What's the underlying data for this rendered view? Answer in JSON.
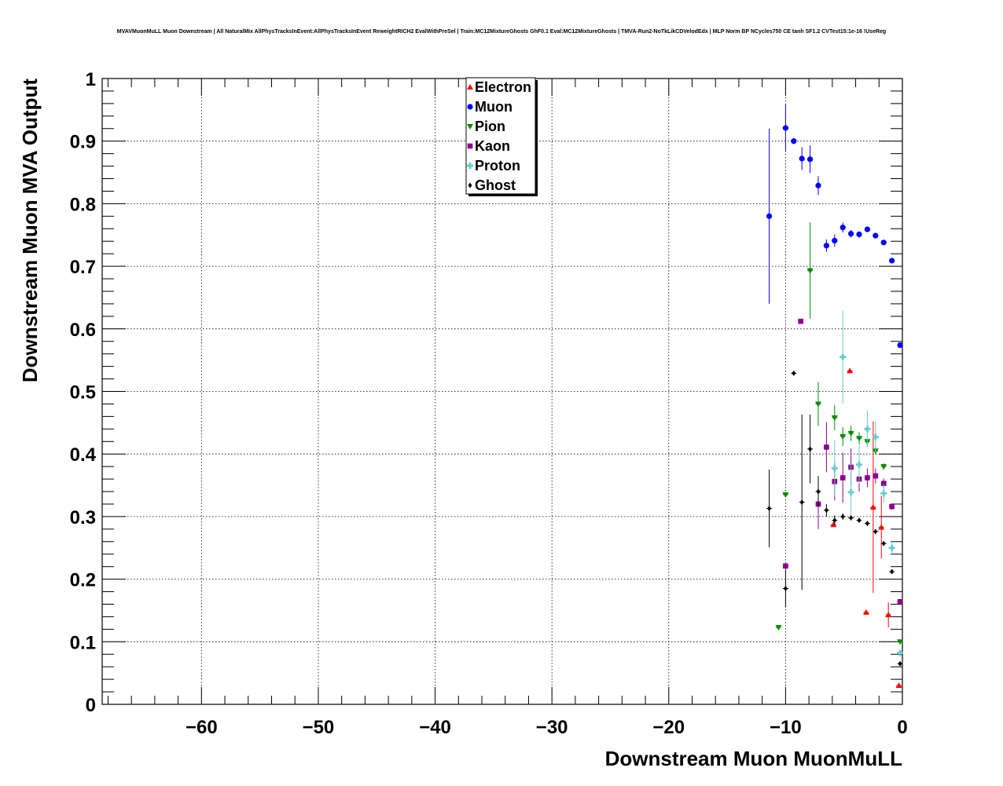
{
  "chart_data": {
    "type": "scatter",
    "title": "MVAVMuonMuLL Muon Downstream | All NaturalMix AllPhysTracksInEvent:AllPhysTracksInEvent ReweightRICH2 EvalWithPreSel | Train:MC12MixtureGhosts GhF0.1 Eval:MC12MixtureGhosts | TMVA-Run2-NoTkLikCDVelodEdx | MLP Norm BP NCycles750 CE tanh SF1.2 CVTest15:1e-16 !UseReg",
    "xlabel": "Downstream Muon MuonMuLL",
    "ylabel": "Downstream Muon MVA Output",
    "xlim": [
      -68.5,
      0
    ],
    "ylim": [
      0,
      1
    ],
    "xticks": [
      "−60",
      "−50",
      "−40",
      "−30",
      "−20",
      "−10",
      "0"
    ],
    "xtick_values": [
      -60,
      -50,
      -40,
      -30,
      -20,
      -10,
      0
    ],
    "yticks": [
      "0",
      "0.1",
      "0.2",
      "0.3",
      "0.4",
      "0.5",
      "0.6",
      "0.7",
      "0.8",
      "0.9",
      "1"
    ],
    "ytick_values": [
      0,
      0.1,
      0.2,
      0.3,
      0.4,
      0.5,
      0.6,
      0.7,
      0.8,
      0.9,
      1
    ],
    "grid": true,
    "legend_position": "top-center",
    "series": [
      {
        "name": "Electron",
        "color": "#ff0000",
        "marker": "triangle-up",
        "points": [
          {
            "x": -4.5,
            "y": 0.533,
            "err": 0.0
          },
          {
            "x": -3.1,
            "y": 0.147,
            "err": 0.0
          },
          {
            "x": -2.5,
            "y": 0.315,
            "err": 0.137
          },
          {
            "x": -1.8,
            "y": 0.283,
            "err": 0.05
          },
          {
            "x": -1.2,
            "y": 0.143,
            "err": 0.02
          },
          {
            "x": -0.3,
            "y": 0.03,
            "err": 0.0
          },
          {
            "x": -5.9,
            "y": 0.287,
            "err": 0.0
          }
        ]
      },
      {
        "name": "Muon",
        "color": "#0000ff",
        "marker": "circle",
        "points": [
          {
            "x": -11.4,
            "y": 0.78,
            "err": 0.14
          },
          {
            "x": -10.0,
            "y": 0.921,
            "err": 0.038
          },
          {
            "x": -9.3,
            "y": 0.9,
            "err": 0.005
          },
          {
            "x": -8.6,
            "y": 0.872,
            "err": 0.018
          },
          {
            "x": -7.9,
            "y": 0.871,
            "err": 0.022
          },
          {
            "x": -7.2,
            "y": 0.829,
            "err": 0.015
          },
          {
            "x": -6.5,
            "y": 0.733,
            "err": 0.01
          },
          {
            "x": -5.8,
            "y": 0.741,
            "err": 0.01
          },
          {
            "x": -5.1,
            "y": 0.762,
            "err": 0.008
          },
          {
            "x": -4.4,
            "y": 0.752,
            "err": 0.006
          },
          {
            "x": -3.7,
            "y": 0.751,
            "err": 0.005
          },
          {
            "x": -3.0,
            "y": 0.759,
            "err": 0.004
          },
          {
            "x": -2.3,
            "y": 0.749,
            "err": 0.004
          },
          {
            "x": -1.6,
            "y": 0.738,
            "err": 0.004
          },
          {
            "x": -0.9,
            "y": 0.709,
            "err": 0.003
          },
          {
            "x": -0.2,
            "y": 0.574,
            "err": 0.002
          }
        ]
      },
      {
        "name": "Pion",
        "color": "#008c00",
        "marker": "triangle-down",
        "points": [
          {
            "x": -10.6,
            "y": 0.123,
            "err": 0.0
          },
          {
            "x": -10.0,
            "y": 0.335,
            "err": 0.0
          },
          {
            "x": -7.9,
            "y": 0.693,
            "err": 0.077
          },
          {
            "x": -7.2,
            "y": 0.48,
            "err": 0.035
          },
          {
            "x": -5.8,
            "y": 0.458,
            "err": 0.02
          },
          {
            "x": -5.1,
            "y": 0.428,
            "err": 0.015
          },
          {
            "x": -4.4,
            "y": 0.433,
            "err": 0.012
          },
          {
            "x": -3.7,
            "y": 0.425,
            "err": 0.01
          },
          {
            "x": -3.0,
            "y": 0.42,
            "err": 0.008
          },
          {
            "x": -2.3,
            "y": 0.405,
            "err": 0.006
          },
          {
            "x": -1.6,
            "y": 0.38,
            "err": 0.005
          },
          {
            "x": -0.2,
            "y": 0.1,
            "err": 0.0
          }
        ]
      },
      {
        "name": "Kaon",
        "color": "#8c008c",
        "marker": "square",
        "points": [
          {
            "x": -10.0,
            "y": 0.221,
            "err": 0.0
          },
          {
            "x": -8.7,
            "y": 0.612,
            "err": 0.0
          },
          {
            "x": -7.2,
            "y": 0.32,
            "err": 0.04
          },
          {
            "x": -6.5,
            "y": 0.411,
            "err": 0.04
          },
          {
            "x": -5.8,
            "y": 0.356,
            "err": 0.03
          },
          {
            "x": -5.1,
            "y": 0.362,
            "err": 0.04
          },
          {
            "x": -4.4,
            "y": 0.379,
            "err": 0.03
          },
          {
            "x": -3.7,
            "y": 0.36,
            "err": 0.02
          },
          {
            "x": -3.0,
            "y": 0.362,
            "err": 0.015
          },
          {
            "x": -2.3,
            "y": 0.365,
            "err": 0.012
          },
          {
            "x": -1.6,
            "y": 0.353,
            "err": 0.008
          },
          {
            "x": -0.9,
            "y": 0.316,
            "err": 0.005
          },
          {
            "x": -0.2,
            "y": 0.164,
            "err": 0.0
          }
        ]
      },
      {
        "name": "Proton",
        "color": "#66cccc",
        "marker": "cross",
        "points": [
          {
            "x": -5.1,
            "y": 0.555,
            "err": 0.074
          },
          {
            "x": -5.8,
            "y": 0.377,
            "err": 0.045
          },
          {
            "x": -4.4,
            "y": 0.339,
            "err": 0.045
          },
          {
            "x": -3.7,
            "y": 0.383,
            "err": 0.03
          },
          {
            "x": -3.0,
            "y": 0.44,
            "err": 0.03
          },
          {
            "x": -2.3,
            "y": 0.427,
            "err": 0.025
          },
          {
            "x": -1.6,
            "y": 0.337,
            "err": 0.015
          },
          {
            "x": -0.9,
            "y": 0.25,
            "err": 0.01
          },
          {
            "x": -0.2,
            "y": 0.082,
            "err": 0.0
          }
        ]
      },
      {
        "name": "Ghost",
        "color": "#000000",
        "marker": "diamond",
        "points": [
          {
            "x": -11.4,
            "y": 0.313,
            "err": 0.062
          },
          {
            "x": -10.0,
            "y": 0.185,
            "err": 0.03
          },
          {
            "x": -9.3,
            "y": 0.529,
            "err": 0.0
          },
          {
            "x": -8.6,
            "y": 0.323,
            "err": 0.14
          },
          {
            "x": -7.9,
            "y": 0.408,
            "err": 0.055
          },
          {
            "x": -7.2,
            "y": 0.34,
            "err": 0.025
          },
          {
            "x": -6.5,
            "y": 0.31,
            "err": 0.01
          },
          {
            "x": -5.8,
            "y": 0.294,
            "err": 0.008
          },
          {
            "x": -5.1,
            "y": 0.3,
            "err": 0.005
          },
          {
            "x": -4.4,
            "y": 0.298,
            "err": 0.004
          },
          {
            "x": -3.7,
            "y": 0.294,
            "err": 0.003
          },
          {
            "x": -3.0,
            "y": 0.289,
            "err": 0.003
          },
          {
            "x": -2.3,
            "y": 0.276,
            "err": 0.003
          },
          {
            "x": -1.6,
            "y": 0.257,
            "err": 0.003
          },
          {
            "x": -0.9,
            "y": 0.212,
            "err": 0.002
          },
          {
            "x": -0.2,
            "y": 0.065,
            "err": 0.0
          }
        ]
      }
    ]
  }
}
